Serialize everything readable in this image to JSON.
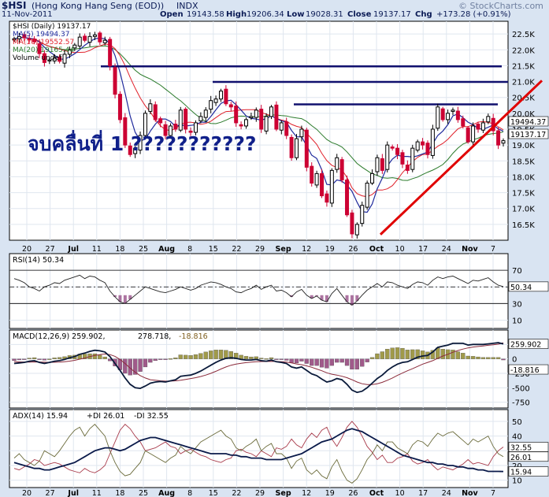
{
  "header": {
    "symbol": "$HSI",
    "name": "(Hong Kong Hang Seng (EOD))",
    "exchange": "INDX",
    "watermark": "© StockCharts.com",
    "date": "11-Nov-2011",
    "open_label": "Open",
    "open": "19143.58",
    "high_label": "High",
    "high": "19206.34",
    "low_label": "Low",
    "low": "19028.31",
    "close_label": "Close",
    "close": "19137.17",
    "chg_label": "Chg",
    "chg": "+173.28 (+0.91%)"
  },
  "annotation": "จบคลื่นที่ 1 ???????????",
  "colors": {
    "background": "#d9e4f2",
    "up": "#000000",
    "down": "#cc0033",
    "ma5": "#1f2a9c",
    "ma10": "#e0202a",
    "ma20": "#2a7a2a",
    "trend": "#e00000",
    "resistance": "#10106e"
  },
  "chart_data": [
    {
      "type": "candlestick",
      "panel": "price",
      "legend": [
        {
          "text": "$HSI (Daily) 19137.17",
          "color": "#000000"
        },
        {
          "text": "MA(5) 19494.37",
          "color": "#1f2a9c"
        },
        {
          "text": "MA(10) 19552.57",
          "color": "#e0202a"
        },
        {
          "text": "MA(20) 19165.44",
          "color": "#2a7a2a"
        },
        {
          "text": "Volume undef",
          "color": "#000000"
        }
      ],
      "y_ticks": [
        "22.5K",
        "22.0K",
        "21.5K",
        "21.0K",
        "20.5K",
        "20.0K",
        "19.5K",
        "19.0K",
        "18.5K",
        "18.0K",
        "17.5K",
        "17.0K",
        "16.5K"
      ],
      "ylim": [
        16000,
        22900
      ],
      "last_labels": [
        "19494.37",
        "19137.17"
      ],
      "x_ticks": [
        "20",
        "27",
        "Jul",
        "11",
        "18",
        "25",
        "Aug",
        "8",
        "15",
        "22",
        "29",
        "Sep",
        "12",
        "19",
        "26",
        "Oct",
        "10",
        "17",
        "24",
        "Nov",
        "7"
      ],
      "resistance_levels": [
        21480,
        20990,
        20280
      ],
      "trendline": [
        [
          16180,
          21030
        ]
      ],
      "close": [
        22350,
        22420,
        22380,
        22310,
        22250,
        21880,
        21600,
        21680,
        21740,
        21640,
        21860,
        22000,
        22150,
        22400,
        22300,
        22420,
        22470,
        22250,
        22300,
        21500,
        20600,
        19800,
        19000,
        18700,
        18900,
        19300,
        20000,
        20300,
        19800,
        19700,
        19300,
        19600,
        19500,
        20100,
        19500,
        19400,
        19700,
        19900,
        20100,
        20400,
        20450,
        20700,
        20300,
        20200,
        19700,
        19600,
        19800,
        19900,
        20100,
        19500,
        19900,
        20200,
        19500,
        19700,
        19300,
        18600,
        19200,
        19500,
        18300,
        17800,
        18100,
        17400,
        17200,
        18200,
        18600,
        17900,
        16800,
        16200,
        16500,
        17100,
        17800,
        18100,
        18600,
        18200,
        19000,
        18900,
        18700,
        18400,
        18200,
        18900,
        19100,
        19000,
        18700,
        19500,
        20200,
        19800,
        20000,
        20100,
        19800,
        19600,
        19100,
        19600,
        19500,
        19700,
        19900,
        19450,
        19000,
        19137
      ]
    },
    {
      "type": "line",
      "panel": "RSI",
      "legend": "RSI(14) 50.34",
      "y_ticks": [
        "70",
        "50",
        "30",
        "10"
      ],
      "ylim": [
        0,
        90
      ],
      "last_label": "50.34",
      "values": [
        60,
        58,
        55,
        50,
        48,
        45,
        50,
        52,
        55,
        54,
        58,
        60,
        62,
        64,
        60,
        63,
        62,
        58,
        55,
        45,
        38,
        32,
        30,
        35,
        40,
        45,
        50,
        48,
        46,
        44,
        43,
        45,
        47,
        50,
        48,
        46,
        48,
        52,
        54,
        56,
        55,
        53,
        50,
        48,
        44,
        43,
        46,
        48,
        52,
        47,
        50,
        52,
        45,
        46,
        43,
        38,
        44,
        47,
        40,
        36,
        39,
        34,
        32,
        42,
        48,
        40,
        32,
        28,
        33,
        40,
        46,
        50,
        54,
        50,
        56,
        55,
        52,
        50,
        48,
        53,
        56,
        55,
        52,
        58,
        62,
        60,
        62,
        63,
        60,
        57,
        54,
        58,
        57,
        59,
        61,
        56,
        52,
        50.34
      ]
    },
    {
      "type": "line",
      "panel": "MACD",
      "legend": [
        "MACD(12,26,9) 259.902,",
        "278.718,",
        "-18.816"
      ],
      "y_ticks": [
        "250",
        "0",
        "-250",
        "-500",
        "-750"
      ],
      "ylim": [
        -850,
        500
      ],
      "last_labels": [
        "259.902",
        "-18.816"
      ],
      "macd": [
        -80,
        -70,
        -60,
        -40,
        -30,
        -60,
        -80,
        -60,
        -40,
        -30,
        -10,
        20,
        40,
        80,
        100,
        130,
        150,
        140,
        120,
        40,
        -80,
        -200,
        -330,
        -440,
        -500,
        -510,
        -470,
        -420,
        -400,
        -390,
        -400,
        -380,
        -360,
        -300,
        -290,
        -280,
        -250,
        -210,
        -160,
        -110,
        -60,
        -20,
        10,
        20,
        10,
        -10,
        -20,
        -20,
        -10,
        -30,
        -40,
        -20,
        -50,
        -60,
        -80,
        -140,
        -160,
        -140,
        -200,
        -260,
        -290,
        -350,
        -400,
        -380,
        -340,
        -360,
        -440,
        -540,
        -580,
        -560,
        -500,
        -420,
        -340,
        -280,
        -200,
        -140,
        -90,
        -60,
        -50,
        -10,
        30,
        50,
        60,
        120,
        200,
        220,
        240,
        270,
        270,
        270,
        240,
        250,
        250,
        250,
        260,
        270,
        280,
        259.9
      ],
      "signal": [
        -50,
        -52,
        -54,
        -55,
        -52,
        -54,
        -58,
        -60,
        -58,
        -55,
        -48,
        -38,
        -25,
        -5,
        15,
        40,
        60,
        75,
        85,
        75,
        45,
        -10,
        -80,
        -160,
        -230,
        -290,
        -330,
        -360,
        -370,
        -380,
        -385,
        -385,
        -380,
        -370,
        -355,
        -340,
        -325,
        -305,
        -280,
        -250,
        -215,
        -175,
        -140,
        -110,
        -90,
        -75,
        -65,
        -55,
        -48,
        -45,
        -45,
        -42,
        -44,
        -48,
        -55,
        -70,
        -88,
        -100,
        -120,
        -145,
        -175,
        -205,
        -240,
        -265,
        -280,
        -300,
        -325,
        -360,
        -400,
        -430,
        -445,
        -445,
        -430,
        -405,
        -370,
        -330,
        -285,
        -245,
        -205,
        -170,
        -130,
        -90,
        -60,
        -30,
        10,
        50,
        80,
        115,
        145,
        170,
        190,
        205,
        215,
        225,
        235,
        245,
        255,
        278.7
      ],
      "histogram": [
        -30,
        -18,
        -6,
        15,
        22,
        -6,
        -22,
        0,
        18,
        25,
        38,
        58,
        65,
        85,
        85,
        90,
        90,
        65,
        35,
        -35,
        -125,
        -190,
        -250,
        -280,
        -270,
        -220,
        -140,
        -60,
        -30,
        -10,
        -15,
        5,
        20,
        70,
        65,
        60,
        75,
        95,
        120,
        140,
        155,
        155,
        150,
        130,
        100,
        65,
        45,
        35,
        38,
        15,
        5,
        22,
        -6,
        -12,
        -25,
        -70,
        -72,
        -40,
        -80,
        -115,
        -115,
        -145,
        -160,
        -115,
        -60,
        -60,
        -115,
        -180,
        -180,
        -130,
        -55,
        25,
        90,
        125,
        170,
        190,
        195,
        185,
        155,
        160,
        160,
        140,
        120,
        150,
        190,
        170,
        160,
        155,
        125,
        100,
        50,
        45,
        35,
        25,
        25,
        25,
        25,
        -18.8
      ]
    },
    {
      "type": "line",
      "panel": "ADX",
      "legend": [
        "ADX(14) 15.94",
        "+DI 26.01",
        "-DI 32.55"
      ],
      "y_ticks": [
        "50",
        "40",
        "30",
        "20",
        "10"
      ],
      "ylim": [
        5,
        58
      ],
      "last_labels": [
        "32.55",
        "26.01",
        "15.94"
      ],
      "adx": [
        22,
        21,
        20,
        19,
        18,
        18,
        17,
        17,
        18,
        19,
        20,
        21,
        22,
        24,
        26,
        28,
        30,
        31,
        32,
        32,
        31,
        30,
        31,
        33,
        35,
        37,
        38,
        39,
        39,
        38,
        37,
        36,
        35,
        34,
        33,
        32,
        31,
        30,
        29,
        28,
        28,
        28,
        28,
        27,
        27,
        26,
        26,
        25,
        25,
        25,
        24,
        24,
        24,
        24,
        25,
        26,
        27,
        28,
        30,
        32,
        34,
        36,
        37,
        38,
        40,
        42,
        44,
        45,
        44,
        43,
        41,
        39,
        37,
        35,
        33,
        31,
        29,
        27,
        26,
        25,
        24,
        23,
        22,
        22,
        21,
        21,
        20,
        20,
        19,
        19,
        18,
        18,
        17,
        17,
        16,
        16,
        16,
        15.94
      ],
      "plus_di": [
        25,
        28,
        24,
        22,
        20,
        23,
        30,
        28,
        26,
        30,
        35,
        40,
        44,
        46,
        40,
        45,
        48,
        44,
        40,
        30,
        22,
        16,
        13,
        14,
        18,
        22,
        30,
        28,
        26,
        24,
        22,
        25,
        27,
        33,
        30,
        28,
        32,
        36,
        38,
        40,
        42,
        44,
        40,
        38,
        32,
        30,
        33,
        35,
        38,
        30,
        33,
        35,
        28,
        28,
        25,
        18,
        23,
        25,
        17,
        14,
        17,
        13,
        11,
        19,
        24,
        16,
        10,
        8,
        11,
        17,
        24,
        28,
        34,
        30,
        36,
        36,
        32,
        30,
        28,
        34,
        37,
        36,
        33,
        38,
        42,
        40,
        42,
        43,
        40,
        37,
        34,
        38,
        36,
        38,
        40,
        33,
        28,
        26.01
      ],
      "minus_di": [
        18,
        17,
        19,
        21,
        24,
        23,
        20,
        21,
        22,
        21,
        19,
        17,
        16,
        15,
        18,
        16,
        15,
        17,
        20,
        28,
        36,
        44,
        48,
        45,
        40,
        36,
        30,
        31,
        32,
        34,
        36,
        33,
        32,
        28,
        30,
        31,
        29,
        27,
        26,
        24,
        23,
        22,
        24,
        25,
        30,
        31,
        29,
        28,
        26,
        30,
        28,
        26,
        32,
        31,
        33,
        38,
        34,
        32,
        38,
        42,
        39,
        44,
        46,
        38,
        33,
        39,
        46,
        50,
        46,
        40,
        33,
        29,
        24,
        27,
        22,
        22,
        25,
        26,
        28,
        23,
        21,
        22,
        24,
        20,
        17,
        19,
        18,
        17,
        19,
        21,
        24,
        21,
        22,
        21,
        20,
        26,
        30,
        32.55
      ]
    }
  ]
}
